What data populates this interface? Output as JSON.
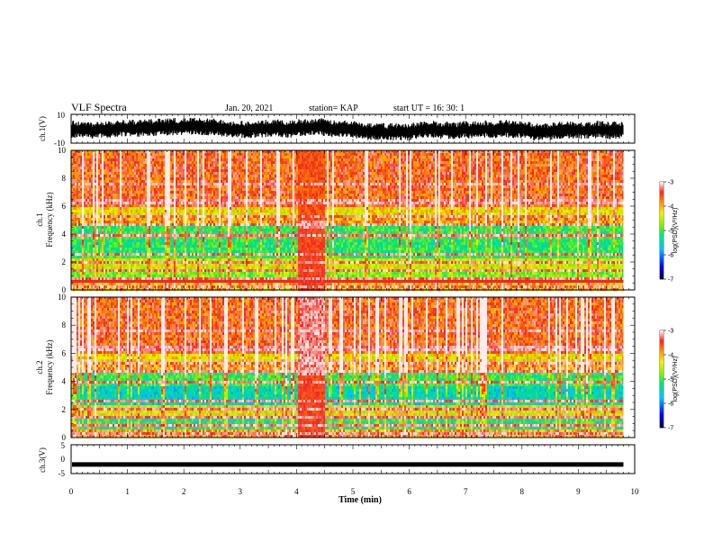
{
  "header": {
    "title": "VLF Spectra",
    "date": "Jan. 20, 2021",
    "station": "station= KAP",
    "start": "start  UT =   16: 30: 1"
  },
  "colors": {
    "trace": "#000000",
    "axis": "#000000"
  },
  "chart_data": [
    {
      "type": "line",
      "panel": "ch1-waveform",
      "ylabel": "ch.1(V)",
      "ylim": [
        -10,
        10
      ],
      "yticks": [
        "10",
        "-10"
      ],
      "xlim": [
        0,
        10
      ],
      "x_end": 9.8,
      "series": [
        {
          "values_min": -6,
          "values_max": 6
        }
      ]
    },
    {
      "type": "heatmap",
      "panel": "ch1-spectrogram",
      "ylabel": "ch.1 Frequency (kHz)",
      "ylim": [
        0,
        10
      ],
      "yticks": [
        "0",
        "2",
        "4",
        "6",
        "8",
        "10"
      ],
      "xlim": [
        0,
        10
      ],
      "x_end": 9.8,
      "gap_interval": [
        4.0,
        4.5
      ],
      "colorbar": {
        "label": "log(PSD)(V²/Hz)",
        "range": [
          -7,
          -3
        ],
        "ticks": [
          "-3",
          "-4",
          "-5",
          "-6",
          "-7"
        ]
      }
    },
    {
      "type": "heatmap",
      "panel": "ch2-spectrogram",
      "ylabel": "ch.2 Frequency (kHz)",
      "ylim": [
        0,
        10
      ],
      "yticks": [
        "0",
        "2",
        "4",
        "6",
        "8",
        "10"
      ],
      "xlim": [
        0,
        10
      ],
      "x_end": 9.8,
      "gap_interval": [
        4.0,
        4.5
      ],
      "colorbar": {
        "label": "log(PSD)(V²/Hz)",
        "range": [
          -7,
          -3
        ],
        "ticks": [
          "-3",
          "-4",
          "-5",
          "-6",
          "-7"
        ]
      }
    },
    {
      "type": "line",
      "panel": "ch3-waveform",
      "ylabel": "ch.3(V)",
      "ylim": [
        -5,
        5
      ],
      "yticks": [
        "5",
        "0",
        "-5"
      ],
      "xlim": [
        0,
        10
      ],
      "x_end": 9.8,
      "xlabel": "Time  (min)",
      "xticks": [
        "0",
        "1",
        "2",
        "3",
        "4",
        "5",
        "6",
        "7",
        "8",
        "9",
        "10"
      ],
      "series": [
        {
          "level": -2
        }
      ]
    }
  ]
}
